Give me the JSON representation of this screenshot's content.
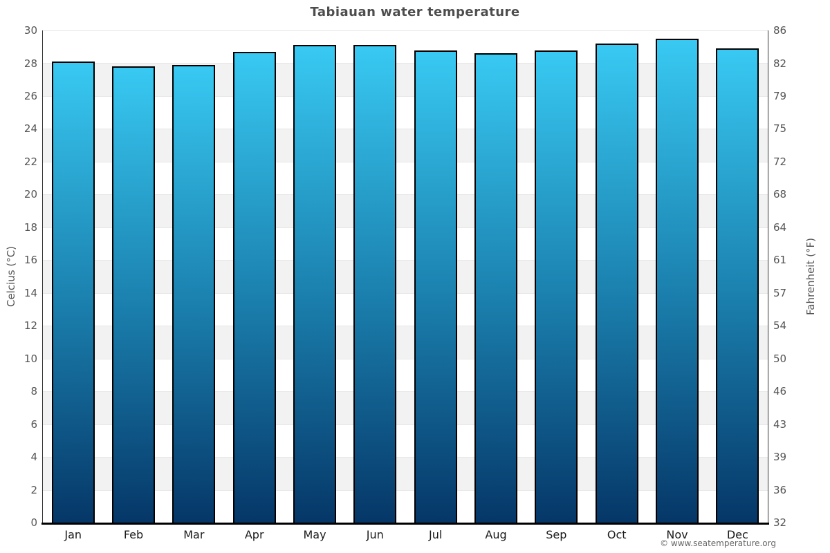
{
  "chart_data": {
    "type": "bar",
    "title": "Tabiauan water temperature",
    "categories": [
      "Jan",
      "Feb",
      "Mar",
      "Apr",
      "May",
      "Jun",
      "Jul",
      "Aug",
      "Sep",
      "Oct",
      "Nov",
      "Dec"
    ],
    "series": [
      {
        "name": "Water temperature",
        "unit": "°C",
        "values": [
          28.1,
          27.8,
          27.9,
          28.7,
          29.1,
          29.1,
          28.8,
          28.6,
          28.8,
          29.2,
          29.5,
          28.9
        ]
      }
    ],
    "ylabel_left": "Celcius (°C)",
    "ylabel_right": "Fahrenheit (°F)",
    "yticks_left": [
      30,
      28,
      26,
      24,
      22,
      20,
      18,
      16,
      14,
      12,
      10,
      8,
      6,
      4,
      2,
      0
    ],
    "yticks_right": [
      86,
      82,
      79,
      75,
      72,
      68,
      64,
      61,
      57,
      54,
      50,
      46,
      43,
      39,
      36,
      32
    ],
    "ylim": [
      0,
      30
    ],
    "xlabel": "",
    "legend": "none",
    "grid": "alternating horizontal bands every 2°C"
  },
  "footer": {
    "copyright": "© www.seatemperature.org"
  },
  "colors": {
    "bar_top": "#38c9f2",
    "bar_mid": "#1b80ae",
    "bar_bottom": "#053768",
    "bar_border": "#000000",
    "band_light": "#ffffff",
    "band_dark": "#f2f2f2",
    "gridline": "#e7e7e7",
    "axis_line": "#333333",
    "baseline": "#000000",
    "title_text": "#4d4d4d",
    "tick_text": "#555555",
    "month_text": "#1a1a1a",
    "copyright_text": "#666666"
  }
}
